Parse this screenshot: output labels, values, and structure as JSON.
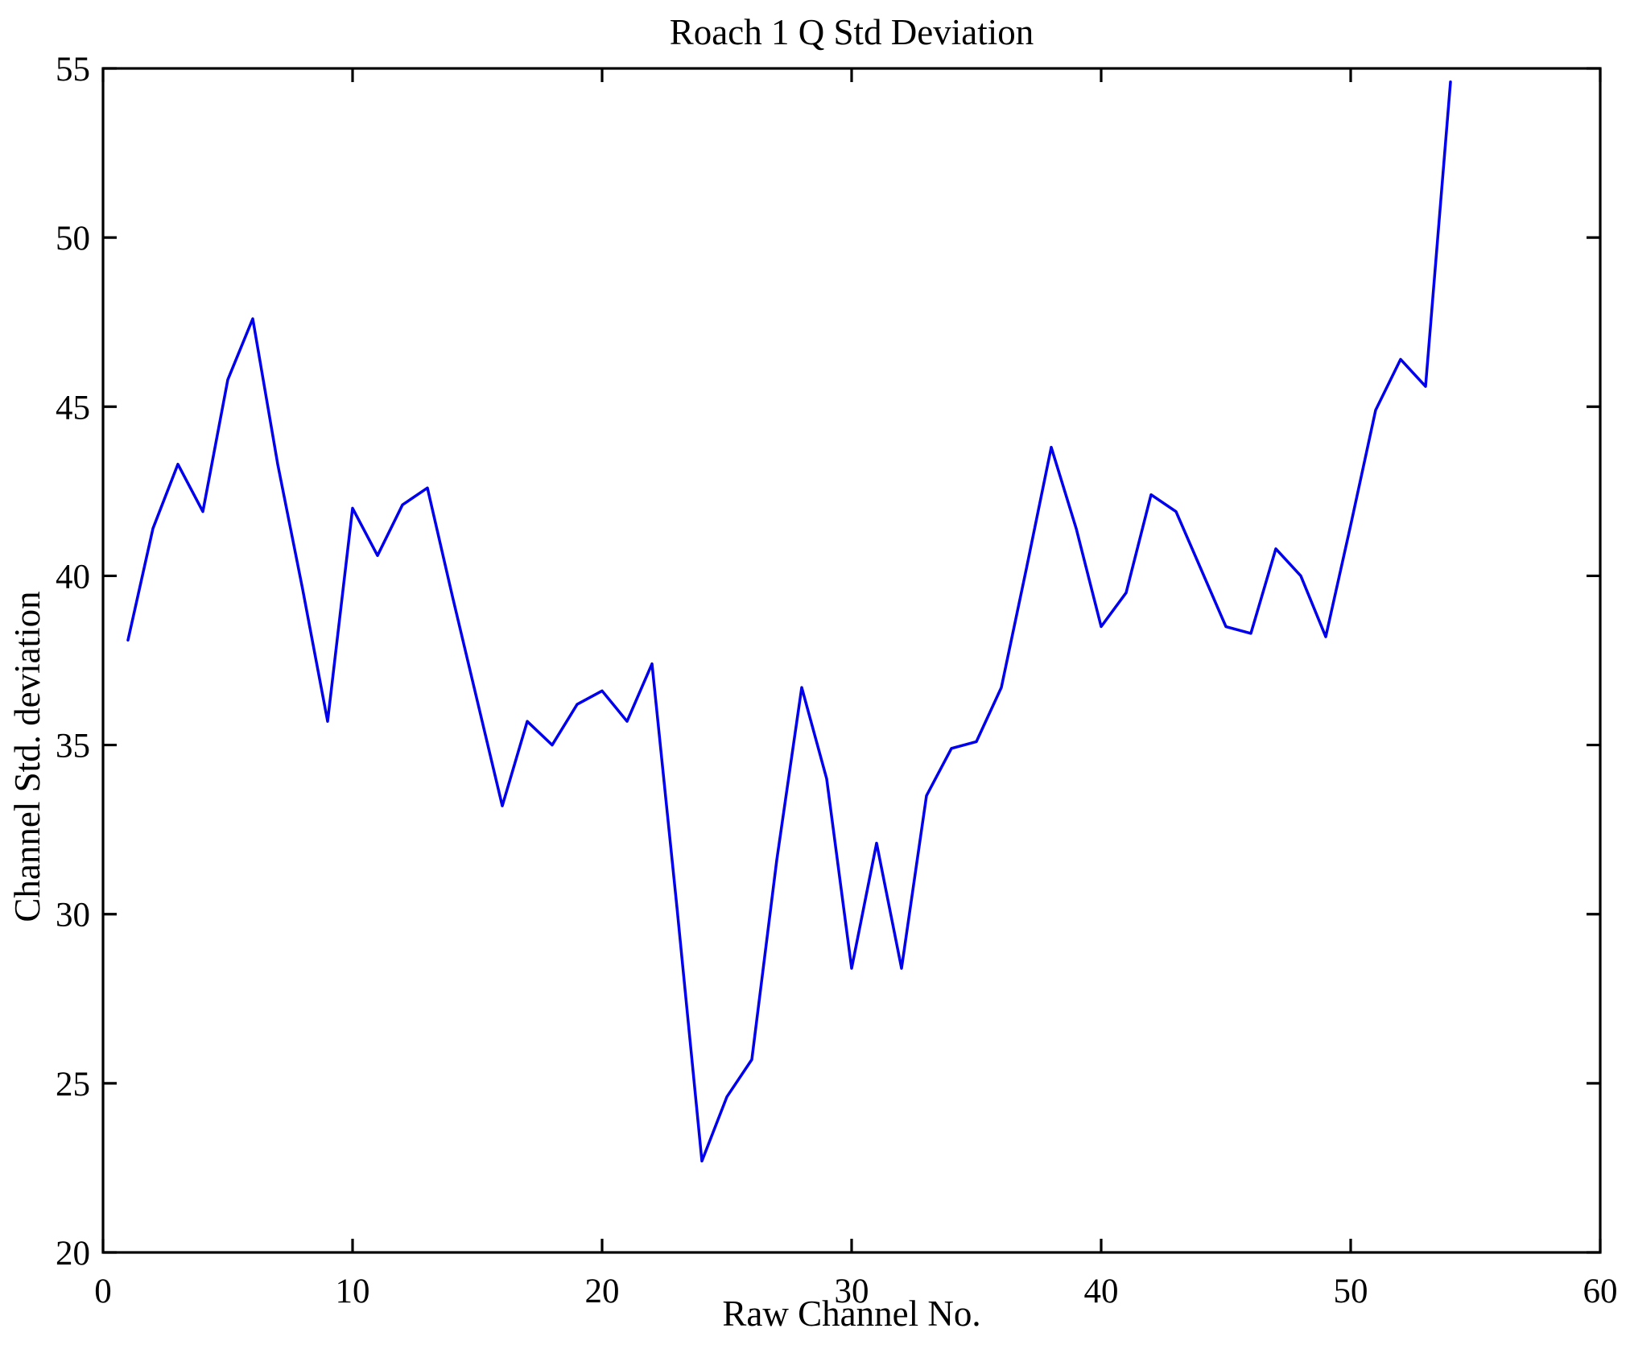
{
  "chart_data": {
    "type": "line",
    "title": "Roach 1 Q Std Deviation",
    "xlabel": "Raw Channel No.",
    "ylabel": "Channel Std. deviation",
    "xlim": [
      0,
      60
    ],
    "ylim": [
      20,
      55
    ],
    "x_ticks": [
      0,
      10,
      20,
      30,
      40,
      50,
      60
    ],
    "y_ticks": [
      20,
      25,
      30,
      35,
      40,
      45,
      50,
      55
    ],
    "grid": false,
    "legend": null,
    "line_color": "#0000EE",
    "axis_color": "#000000",
    "background_color": "#ffffff",
    "series": [
      {
        "name": "Channel Std deviation",
        "x": [
          1,
          2,
          3,
          4,
          5,
          6,
          7,
          8,
          9,
          10,
          11,
          12,
          13,
          14,
          15,
          16,
          17,
          18,
          19,
          20,
          21,
          22,
          23,
          24,
          25,
          26,
          27,
          28,
          29,
          30,
          31,
          32,
          33,
          34,
          35,
          36,
          37,
          38,
          39,
          40,
          41,
          42,
          43,
          44,
          45,
          46,
          47,
          48,
          49,
          50,
          51,
          52,
          53,
          54
        ],
        "y": [
          38.1,
          41.4,
          43.3,
          41.9,
          45.8,
          47.6,
          43.3,
          39.6,
          35.7,
          42.0,
          40.6,
          42.1,
          42.6,
          39.4,
          36.3,
          33.2,
          35.7,
          35.0,
          36.2,
          36.6,
          35.7,
          37.4,
          30.2,
          22.7,
          24.6,
          25.7,
          31.6,
          36.7,
          34.0,
          28.4,
          32.1,
          28.4,
          33.5,
          34.9,
          35.1,
          36.7,
          40.2,
          43.8,
          41.4,
          38.5,
          39.5,
          42.4,
          41.9,
          40.2,
          38.5,
          38.3,
          40.8,
          40.0,
          38.2,
          41.5,
          44.9,
          46.4,
          45.6,
          54.6
        ]
      }
    ]
  }
}
